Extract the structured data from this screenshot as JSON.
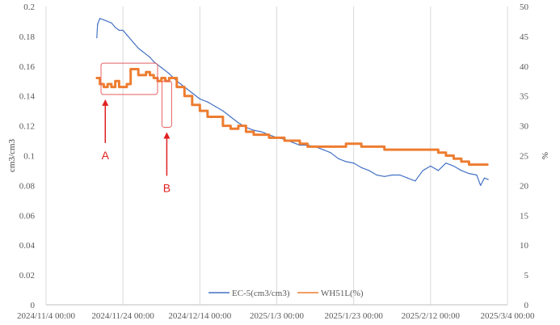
{
  "chart_data": {
    "type": "line",
    "title": "",
    "ylabel": "cm3/cm3",
    "y2label": "%",
    "x_ticks": [
      "2024/11/4 00:00",
      "2024/11/24 00:00",
      "2024/12/14 00:00",
      "2025/1/3 00:00",
      "2025/1/23 00:00",
      "2025/2/12 00:00",
      "2025/3/4 00:00"
    ],
    "x_range_days": [
      0,
      120
    ],
    "y_ticks": [
      "0",
      "0.02",
      "0.04",
      "0.06",
      "0.08",
      "0.1",
      "0.12",
      "0.14",
      "0.16",
      "0.18",
      "0.2"
    ],
    "ylim": [
      0,
      0.2
    ],
    "y2_ticks": [
      "0",
      "5",
      "10",
      "15",
      "20",
      "25",
      "30",
      "35",
      "40",
      "45",
      "50"
    ],
    "y2lim": [
      0,
      50
    ],
    "grid": "vertical",
    "legend_position": "bottom",
    "series": [
      {
        "name": "EC-5(cm3/cm3)",
        "axis": "left",
        "color": "#4472c4",
        "x": [
          13.2,
          13.4,
          14.0,
          15.0,
          16.0,
          17.0,
          18.0,
          19.0,
          20.0,
          21.0,
          22.0,
          23.0,
          24.0,
          25.0,
          26.0,
          27.0,
          28.0,
          29.0,
          30.0,
          31.0,
          32.0,
          34.0,
          36.0,
          38.0,
          40.0,
          42.0,
          44.0,
          46.0,
          48.0,
          50.0,
          52.0,
          54.0,
          56.0,
          58.0,
          60.0,
          62.0,
          64.0,
          66.0,
          68.0,
          70.0,
          72.0,
          74.0,
          76.0,
          78.0,
          80.0,
          82.0,
          84.0,
          86.0,
          88.0,
          90.0,
          92.0,
          94.0,
          96.0,
          98.0,
          100.0,
          102.0,
          104.0,
          106.0,
          108.0,
          110.0,
          112.0,
          113.0,
          114.0,
          115.0
        ],
        "y": [
          0.179,
          0.188,
          0.192,
          0.191,
          0.19,
          0.189,
          0.186,
          0.184,
          0.184,
          0.181,
          0.178,
          0.175,
          0.172,
          0.17,
          0.168,
          0.166,
          0.163,
          0.161,
          0.159,
          0.157,
          0.155,
          0.15,
          0.146,
          0.142,
          0.138,
          0.136,
          0.133,
          0.13,
          0.126,
          0.122,
          0.119,
          0.117,
          0.116,
          0.114,
          0.112,
          0.111,
          0.109,
          0.107,
          0.107,
          0.106,
          0.104,
          0.102,
          0.098,
          0.096,
          0.095,
          0.092,
          0.09,
          0.087,
          0.086,
          0.087,
          0.087,
          0.085,
          0.083,
          0.09,
          0.093,
          0.09,
          0.095,
          0.093,
          0.09,
          0.088,
          0.087,
          0.08,
          0.085,
          0.084
        ]
      },
      {
        "name": "WH51L(%)",
        "axis": "right",
        "color": "#ed7d31",
        "x": [
          13.0,
          14.0,
          15.0,
          16.0,
          17.0,
          18.0,
          19.0,
          20.0,
          21.0,
          22.0,
          23.0,
          24.0,
          25.0,
          26.0,
          27.0,
          28.0,
          29.0,
          30.0,
          31.0,
          32.0,
          34.0,
          36.0,
          38.0,
          40.0,
          42.0,
          44.0,
          46.0,
          48.0,
          50.0,
          52.0,
          54.0,
          56.0,
          58.0,
          60.0,
          62.0,
          64.0,
          66.0,
          68.0,
          70.0,
          72.0,
          74.0,
          76.0,
          78.0,
          80.0,
          82.0,
          84.0,
          86.0,
          88.0,
          90.0,
          92.0,
          94.0,
          96.0,
          98.0,
          100.0,
          102.0,
          104.0,
          106.0,
          108.0,
          110.0,
          112.0,
          114.0,
          115.0
        ],
        "y": [
          38.0,
          37.0,
          36.5,
          37.0,
          36.5,
          37.5,
          36.5,
          36.5,
          37.0,
          39.5,
          39.5,
          38.5,
          38.5,
          39.0,
          38.5,
          38.0,
          37.5,
          38.0,
          37.5,
          38.0,
          36.5,
          35.0,
          33.5,
          32.5,
          31.5,
          31.5,
          30.0,
          29.5,
          30.0,
          29.0,
          28.5,
          28.5,
          28.0,
          28.0,
          27.5,
          27.5,
          27.0,
          26.5,
          26.5,
          26.5,
          26.5,
          26.5,
          27.0,
          27.0,
          26.5,
          26.5,
          26.5,
          26.0,
          26.0,
          26.0,
          26.0,
          26.0,
          26.0,
          26.0,
          25.5,
          25.0,
          24.5,
          24.0,
          23.5,
          23.5,
          23.5,
          23.5
        ]
      }
    ],
    "annotations": [
      {
        "label": "A",
        "x": 15.4,
        "y_top": 0.162,
        "y_bottom": 0.141
      },
      {
        "label": "B",
        "x": 31.4,
        "y_top": 0.15,
        "y_bottom": 0.119
      }
    ]
  }
}
